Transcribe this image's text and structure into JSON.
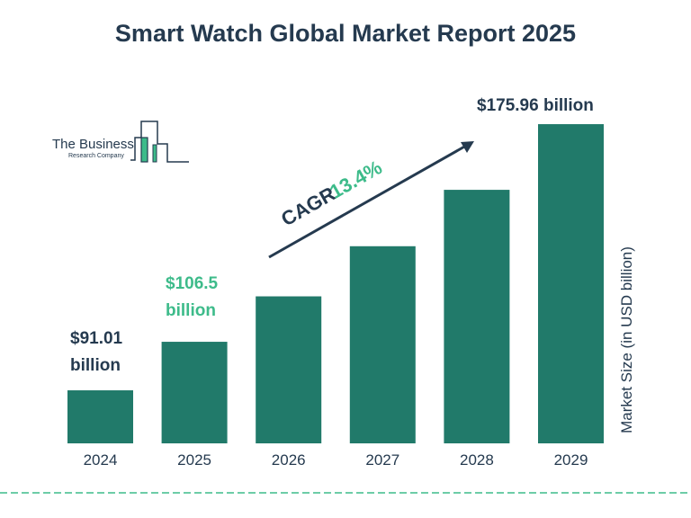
{
  "title": "Smart Watch Global Market Report 2025",
  "logo": {
    "line1": "The Business",
    "line2": "Research Company"
  },
  "colors": {
    "bar": "#217a6a",
    "dark": "#253a4f",
    "accent": "#3dbb8a"
  },
  "cagr": {
    "label": "CAGR",
    "value": "13.4%"
  },
  "chart_data": {
    "type": "bar",
    "title": "Smart Watch Global Market Report 2025",
    "categories": [
      "2024",
      "2025",
      "2026",
      "2027",
      "2028",
      "2029"
    ],
    "values": [
      91.01,
      106.5,
      121,
      137,
      155,
      175.96
    ],
    "ylabel": "Market Size (in USD billion)",
    "xlabel": "",
    "grid": false,
    "data_labels": [
      {
        "category": "2024",
        "line1": "$91.01",
        "line2": "billion"
      },
      {
        "category": "2025",
        "line1": "$106.5",
        "line2": "billion"
      },
      {
        "category": "2029",
        "line1": "$175.96 billion",
        "line2": ""
      }
    ],
    "annotation": "CAGR 13.4%"
  }
}
